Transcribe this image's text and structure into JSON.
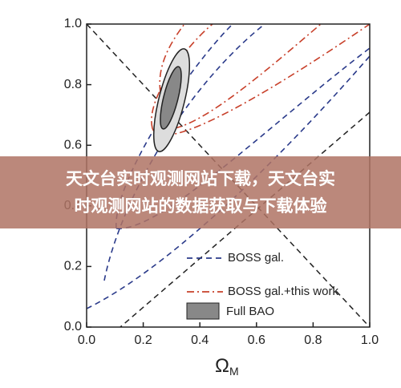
{
  "chart_data": {
    "type": "contour",
    "x_label": "Ω",
    "x_label_sub": "M",
    "xlim": [
      0,
      1
    ],
    "ylim": [
      0,
      1
    ],
    "xticks": [
      {
        "value": 0,
        "label": "0.0"
      },
      {
        "value": 0.2,
        "label": "0.2"
      },
      {
        "value": 0.4,
        "label": "0.4"
      },
      {
        "value": 0.6,
        "label": "0.6"
      },
      {
        "value": 0.8,
        "label": "0.8"
      },
      {
        "value": 1,
        "label": "1.0"
      }
    ],
    "yticks": [
      {
        "value": 0,
        "label": "0.0"
      },
      {
        "value": 0.2,
        "label": "0.2"
      },
      {
        "value": 0.4,
        "label": "0.4"
      },
      {
        "value": 0.6,
        "label": "0.6"
      },
      {
        "value": 0.8,
        "label": "0.8"
      },
      {
        "value": 1,
        "label": "1.0"
      }
    ],
    "legend": [
      "BOSS gal.",
      "BOSS gal.+this work",
      "Full BAO"
    ]
  },
  "overlay": {
    "lines": [
      "天文台实时观测网站下载，天文台实",
      "时观测网站的数据获取与下载体验"
    ]
  }
}
